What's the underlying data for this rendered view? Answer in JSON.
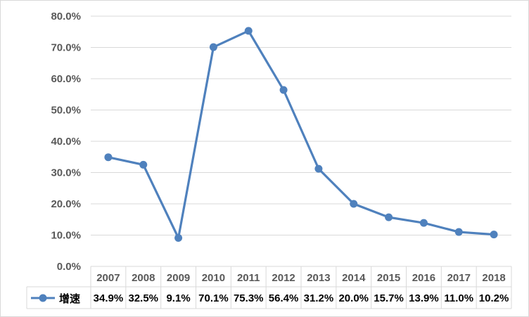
{
  "chart_data": {
    "type": "line",
    "categories": [
      "2007",
      "2008",
      "2009",
      "2010",
      "2011",
      "2012",
      "2013",
      "2014",
      "2015",
      "2016",
      "2017",
      "2018"
    ],
    "series": [
      {
        "name": "增速",
        "values": [
          34.9,
          32.5,
          9.1,
          70.1,
          75.3,
          56.4,
          31.2,
          20.0,
          15.7,
          13.9,
          11.0,
          10.2
        ],
        "labels": [
          "34.9%",
          "32.5%",
          "9.1%",
          "70.1%",
          "75.3%",
          "56.4%",
          "31.2%",
          "20.0%",
          "15.7%",
          "13.9%",
          "11.0%",
          "10.2%"
        ],
        "color": "#4f81bd"
      }
    ],
    "ylim": [
      0,
      80
    ],
    "yticks": [
      "0.0%",
      "10.0%",
      "20.0%",
      "30.0%",
      "40.0%",
      "50.0%",
      "60.0%",
      "70.0%",
      "80.0%"
    ],
    "grid": true,
    "legend": "data-table"
  }
}
